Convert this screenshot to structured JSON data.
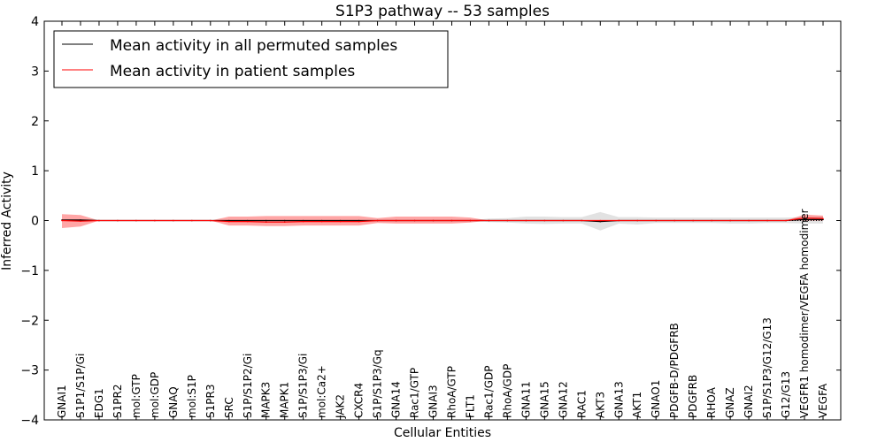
{
  "chart_data": {
    "type": "line",
    "title": "S1P3 pathway -- 53 samples",
    "xlabel": "Cellular Entities",
    "ylabel": "Inferred Activity",
    "ylim": [
      -4,
      4
    ],
    "yticks": [
      -4,
      -3,
      -2,
      -1,
      0,
      1,
      2,
      3,
      4
    ],
    "ytick_labels": [
      "−4",
      "−3",
      "−2",
      "−1",
      "0",
      "1",
      "2",
      "3",
      "4"
    ],
    "legend_position": "upper-left",
    "categories": [
      "GNAI1",
      "S1P1/S1P/Gi",
      "EDG1",
      "S1PR2",
      "mol:GTP",
      "mol:GDP",
      "GNAQ",
      "mol:S1P",
      "S1PR3",
      "SRC",
      "S1P/S1P2/Gi",
      "MAPK3",
      "MAPK1",
      "S1P/S1P3/Gi",
      "mol:Ca2+",
      "JAK2",
      "CXCR4",
      "S1P/S1P3/Gq",
      "GNA14",
      "Rac1/GTP",
      "GNAI3",
      "RhoA/GTP",
      "FLT1",
      "Rac1/GDP",
      "RhoA/GDP",
      "GNA11",
      "GNA15",
      "GNA12",
      "RAC1",
      "AKT3",
      "GNA13",
      "AKT1",
      "GNAO1",
      "PDGFB-D/PDGFRB",
      "PDGFRB",
      "RHOA",
      "GNAZ",
      "GNAI2",
      "S1P/S1P3/G12/G13",
      "G12/G13",
      "VEGFR1 homodimer/VEGFA homodimer",
      "VEGFA"
    ],
    "series": [
      {
        "name": "Mean activity in all permuted samples",
        "color": "#000000",
        "values": [
          0.01,
          0.01,
          0.0,
          0.0,
          0.0,
          0.0,
          0.0,
          0.0,
          0.0,
          0.0,
          0.0,
          0.0,
          0.0,
          0.0,
          0.0,
          0.0,
          0.0,
          0.0,
          0.0,
          0.0,
          0.0,
          0.0,
          0.0,
          0.0,
          0.0,
          0.0,
          0.0,
          0.0,
          0.0,
          -0.02,
          0.0,
          0.0,
          0.0,
          0.0,
          0.0,
          0.0,
          0.0,
          0.0,
          0.0,
          0.0,
          0.02,
          0.02
        ],
        "band_lower": [
          0.0,
          0.0,
          0.0,
          0.0,
          0.0,
          0.0,
          0.0,
          0.0,
          0.0,
          0.0,
          0.0,
          0.0,
          0.0,
          0.0,
          0.0,
          0.0,
          0.0,
          0.0,
          0.0,
          0.0,
          0.0,
          0.0,
          0.0,
          -0.03,
          -0.04,
          -0.06,
          -0.07,
          -0.06,
          -0.06,
          -0.2,
          -0.06,
          -0.08,
          -0.05,
          -0.05,
          -0.05,
          -0.05,
          -0.06,
          -0.06,
          -0.05,
          -0.05,
          -0.06,
          -0.06
        ],
        "band_upper": [
          0.0,
          0.0,
          0.0,
          0.0,
          0.0,
          0.0,
          0.0,
          0.0,
          0.0,
          0.0,
          0.0,
          0.0,
          0.0,
          0.0,
          0.0,
          0.0,
          0.0,
          0.0,
          0.0,
          0.0,
          0.0,
          0.0,
          0.0,
          0.04,
          0.05,
          0.08,
          0.08,
          0.07,
          0.07,
          0.17,
          0.07,
          0.07,
          0.06,
          0.06,
          0.06,
          0.06,
          0.06,
          0.06,
          0.06,
          0.06,
          0.07,
          0.08
        ]
      },
      {
        "name": "Mean activity in patient samples",
        "color": "#ff0000",
        "values": [
          0.0,
          -0.01,
          0.0,
          0.0,
          0.0,
          0.0,
          0.0,
          0.0,
          0.0,
          -0.02,
          -0.02,
          -0.03,
          -0.03,
          -0.02,
          -0.02,
          -0.02,
          -0.02,
          0.0,
          0.0,
          0.0,
          0.0,
          0.0,
          0.0,
          0.0,
          0.0,
          0.0,
          0.0,
          0.0,
          0.0,
          0.0,
          0.0,
          0.0,
          0.0,
          0.0,
          0.0,
          0.0,
          0.0,
          0.0,
          0.0,
          0.0,
          0.05,
          0.04
        ],
        "band_lower": [
          -0.15,
          -0.12,
          0.0,
          0.0,
          0.0,
          0.0,
          0.0,
          0.0,
          0.0,
          -0.1,
          -0.1,
          -0.11,
          -0.11,
          -0.1,
          -0.1,
          -0.1,
          -0.1,
          -0.05,
          -0.06,
          -0.06,
          -0.06,
          -0.06,
          -0.04,
          0.0,
          0.0,
          0.0,
          0.0,
          0.0,
          0.0,
          0.0,
          0.0,
          0.0,
          0.0,
          0.0,
          0.0,
          0.0,
          0.0,
          0.0,
          0.0,
          0.0,
          0.0,
          0.0
        ],
        "band_upper": [
          0.13,
          0.11,
          0.0,
          0.0,
          0.0,
          0.0,
          0.0,
          0.0,
          0.0,
          0.08,
          0.08,
          0.09,
          0.09,
          0.09,
          0.09,
          0.09,
          0.09,
          0.05,
          0.08,
          0.08,
          0.08,
          0.08,
          0.06,
          0.0,
          0.0,
          0.0,
          0.0,
          0.0,
          0.0,
          0.0,
          0.0,
          0.0,
          0.0,
          0.0,
          0.0,
          0.0,
          0.0,
          0.0,
          0.0,
          0.0,
          0.12,
          0.1
        ]
      }
    ]
  }
}
